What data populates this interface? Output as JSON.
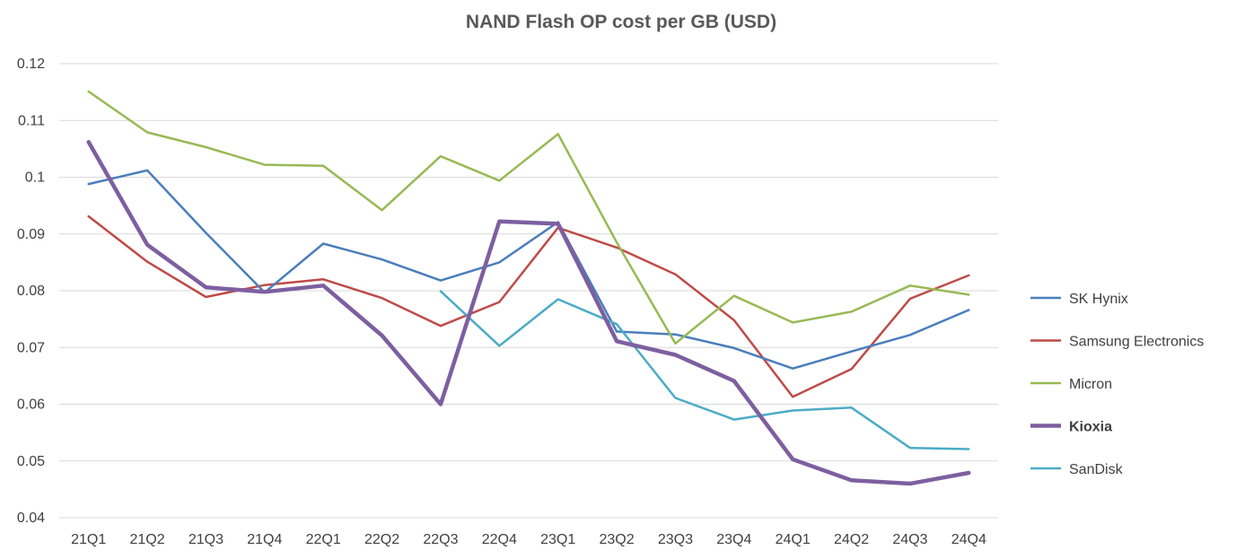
{
  "chart_data": {
    "type": "line",
    "title": "NAND Flash OP cost per GB (USD)",
    "xlabel": "",
    "ylabel": "",
    "ylim": [
      0.04,
      0.12
    ],
    "yticks": [
      "0.04",
      "0.05",
      "0.06",
      "0.07",
      "0.08",
      "0.09",
      "0.1",
      "0.11",
      "0.12"
    ],
    "ytick_values": [
      0.04,
      0.05,
      0.06,
      0.07,
      0.08,
      0.09,
      0.1,
      0.11,
      0.12
    ],
    "grid": true,
    "legend_position": "right",
    "categories": [
      "21Q1",
      "21Q2",
      "21Q3",
      "21Q4",
      "22Q1",
      "22Q2",
      "22Q3",
      "22Q4",
      "23Q1",
      "23Q2",
      "23Q3",
      "23Q4",
      "24Q1",
      "24Q2",
      "24Q3",
      "24Q4"
    ],
    "series": [
      {
        "name": "SK Hynix",
        "color": "#4a7ebb",
        "bold": false,
        "values": [
          0.0988,
          0.1012,
          0.0902,
          0.0797,
          0.0883,
          0.0855,
          0.0818,
          0.085,
          0.0921,
          0.0728,
          0.0723,
          0.0699,
          0.0663,
          0.0693,
          0.0722,
          0.0766
        ]
      },
      {
        "name": "Samsung Electronics",
        "color": "#be4b48",
        "bold": false,
        "values": [
          0.0931,
          0.0851,
          0.0789,
          0.081,
          0.082,
          0.0787,
          0.0738,
          0.078,
          0.0911,
          0.0876,
          0.0829,
          0.0748,
          0.0613,
          0.0662,
          0.0786,
          0.0827
        ]
      },
      {
        "name": "Micron",
        "color": "#98b954",
        "bold": false,
        "values": [
          0.1151,
          0.1079,
          0.1053,
          0.1022,
          0.102,
          0.0942,
          0.1037,
          0.0994,
          0.1076,
          0.0885,
          0.0707,
          0.0791,
          0.0744,
          0.0763,
          0.0809,
          0.0793
        ]
      },
      {
        "name": "Kioxia",
        "color": "#7d5fa0",
        "bold": true,
        "values": [
          0.1062,
          0.0881,
          0.0806,
          0.0798,
          0.0809,
          0.0721,
          0.06,
          0.0922,
          0.0918,
          0.0711,
          0.0687,
          0.0641,
          0.0503,
          0.0466,
          0.046,
          0.0479
        ]
      },
      {
        "name": "SanDisk",
        "color": "#4bacc6",
        "bold": false,
        "values": [
          null,
          null,
          null,
          null,
          null,
          null,
          0.0799,
          0.0703,
          0.0785,
          0.0741,
          0.0611,
          0.0573,
          0.0589,
          0.0594,
          0.0523,
          0.0521
        ]
      }
    ]
  }
}
